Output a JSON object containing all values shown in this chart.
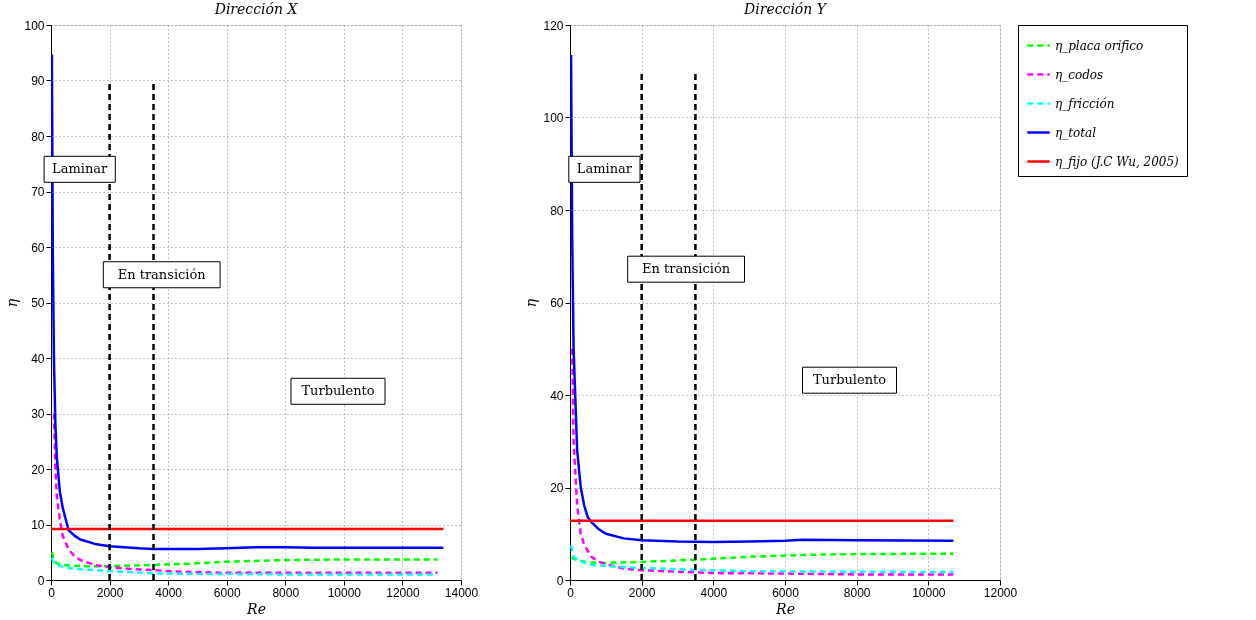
{
  "chart_data": [
    {
      "type": "line",
      "title": "Dirección X",
      "xlabel": "Re",
      "ylabel": "η",
      "xlim": [
        0,
        14000
      ],
      "ylim": [
        0,
        100
      ],
      "xticks": [
        0,
        2000,
        4000,
        6000,
        8000,
        10000,
        12000,
        14000
      ],
      "yticks": [
        0,
        10,
        20,
        30,
        40,
        50,
        60,
        70,
        80,
        90,
        100
      ],
      "grid": true,
      "legend": false,
      "series": [
        {
          "color": "#00ff00",
          "line_style": "dashed",
          "x": [
            30,
            100,
            200,
            400,
            1000,
            2000,
            3500,
            5000,
            6000,
            8000,
            10000,
            13200
          ],
          "values": [
            5,
            3.5,
            3,
            2.7,
            2.5,
            2.5,
            2.7,
            3.0,
            3.3,
            3.6,
            3.7,
            3.7
          ]
        },
        {
          "color": "#ff00ff",
          "line_style": "dashed",
          "x": [
            100,
            150,
            200,
            300,
            400,
            600,
            800,
            1000,
            1500,
            2000,
            3000,
            3500,
            4000,
            5000,
            6000,
            8000,
            10000,
            13200
          ],
          "values": [
            30,
            20,
            15,
            11,
            8,
            5.5,
            4.3,
            3.6,
            2.7,
            2.3,
            1.9,
            1.8,
            1.6,
            1.4,
            1.3,
            1.3,
            1.3,
            1.3
          ]
        },
        {
          "color": "#00ffff",
          "line_style": "dashed",
          "x": [
            30,
            100,
            300,
            800,
            2000,
            3500,
            5000,
            8000,
            13200
          ],
          "values": [
            4,
            3,
            2.5,
            2.0,
            1.6,
            1.2,
            1.1,
            1.0,
            1.0
          ]
        },
        {
          "color": "#0000ff",
          "line_style": "solid",
          "x": [
            30,
            60,
            100,
            150,
            200,
            300,
            400,
            600,
            800,
            1000,
            1500,
            2000,
            3000,
            3500,
            4000,
            5000,
            6000,
            7000,
            8000,
            9000,
            10000,
            12000,
            13400
          ],
          "values": [
            94.7,
            60,
            40,
            28,
            22,
            16,
            13,
            9,
            8,
            7.3,
            6.5,
            6.1,
            5.7,
            5.6,
            5.6,
            5.6,
            5.7,
            5.9,
            5.9,
            5.8,
            5.8,
            5.8,
            5.8
          ]
        },
        {
          "color": "#ff0000",
          "line_style": "solid",
          "x": [
            0,
            13400
          ],
          "values": [
            9.2,
            9.2
          ]
        },
        {
          "color": "#000000",
          "line_style": "dashed",
          "x": [
            2000,
            2000
          ],
          "values": [
            0,
            90
          ]
        },
        {
          "color": "#000000",
          "line_style": "dashed",
          "x": [
            3500,
            3500
          ],
          "values": [
            0,
            90
          ]
        }
      ],
      "annotations": [
        "Laminar",
        "En transición",
        "Turbulento"
      ]
    },
    {
      "type": "line",
      "title": "Dirección Y",
      "xlabel": "Re",
      "ylabel": "η",
      "xlim": [
        0,
        12000
      ],
      "ylim": [
        0,
        120
      ],
      "xticks": [
        0,
        2000,
        4000,
        6000,
        8000,
        10000,
        12000
      ],
      "yticks": [
        0,
        20,
        40,
        60,
        80,
        100,
        120
      ],
      "grid": true,
      "legend": "right",
      "series": [
        {
          "name": "η_placa orifico",
          "color": "#00ff00",
          "line_style": "dashed",
          "x": [
            30,
            200,
            500,
            1000,
            2000,
            3500,
            4000,
            5000,
            6000,
            7000,
            8000,
            10700
          ],
          "values": [
            4.8,
            4.3,
            3.8,
            3.7,
            3.9,
            4.4,
            4.6,
            5.0,
            5.3,
            5.5,
            5.6,
            5.7
          ]
        },
        {
          "name": "η_codos",
          "color": "#ff00ff",
          "line_style": "dashed",
          "x": [
            60,
            100,
            200,
            300,
            400,
            600,
            800,
            1000,
            1500,
            2000,
            3000,
            4000,
            6000,
            8000,
            10700
          ],
          "values": [
            50,
            30,
            16,
            10,
            7.5,
            5,
            4,
            3.4,
            2.5,
            2.1,
            1.8,
            1.5,
            1.4,
            1.2,
            1.2
          ]
        },
        {
          "name": "η_fricción",
          "color": "#00ffff",
          "line_style": "dashed",
          "x": [
            30,
            100,
            300,
            600,
            1000,
            2000,
            3500,
            5000,
            8000,
            10700
          ],
          "values": [
            7.5,
            5,
            4,
            3.3,
            3,
            2.6,
            2.2,
            1.9,
            1.8,
            1.7
          ]
        },
        {
          "name": "η_total",
          "color": "#0000ff",
          "line_style": "solid",
          "x": [
            30,
            60,
            100,
            200,
            300,
            400,
            500,
            600,
            800,
            1000,
            1500,
            2000,
            3000,
            4000,
            5000,
            6000,
            6500,
            8000,
            10700
          ],
          "values": [
            113.5,
            75,
            50,
            28,
            20,
            16,
            13.5,
            12.5,
            11,
            10,
            9,
            8.6,
            8.3,
            8.2,
            8.3,
            8.5,
            8.7,
            8.6,
            8.5
          ]
        },
        {
          "name": "η_fijo (J.C Wu, 2005)",
          "color": "#ff0000",
          "line_style": "solid",
          "x": [
            0,
            10700
          ],
          "values": [
            12.8,
            12.8
          ]
        },
        {
          "color": "#000000",
          "line_style": "dashed",
          "x": [
            2000,
            2000
          ],
          "values": [
            0,
            110
          ]
        },
        {
          "color": "#000000",
          "line_style": "dashed",
          "x": [
            3500,
            3500
          ],
          "values": [
            0,
            110
          ]
        }
      ],
      "annotations": [
        "Laminar",
        "En transición",
        "Turbulento"
      ]
    }
  ]
}
